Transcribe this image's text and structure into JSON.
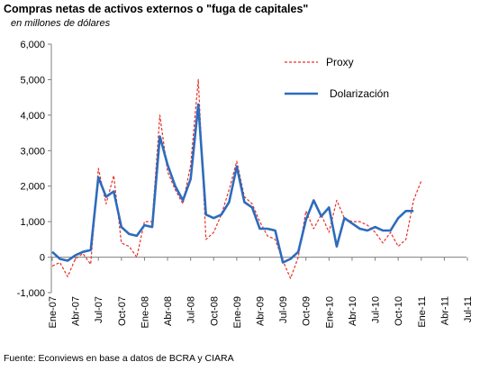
{
  "chart_data": {
    "type": "line",
    "title": "Compras netas de activos externos o \"fuga de capitales\"",
    "subtitle": "en millones de dólares",
    "source": "Fuente: Econviews en base a datos de BCRA y CIARA",
    "ylim": [
      -1000,
      6000
    ],
    "yticks": [
      -1000,
      0,
      1000,
      2000,
      3000,
      4000,
      5000,
      6000
    ],
    "ytick_labels": [
      "-1,000",
      "0",
      "1,000",
      "2,000",
      "3,000",
      "4,000",
      "5,000",
      "6,000"
    ],
    "xticks": [
      "Ene-07",
      "Abr-07",
      "Jul-07",
      "Oct-07",
      "Ene-08",
      "Abr-08",
      "Jul-08",
      "Oct-08",
      "Ene-09",
      "Abr-09",
      "Jul-09",
      "Oct-09",
      "Ene-10",
      "Abr-10",
      "Jul-10",
      "Oct-10",
      "Ene-11",
      "Abr-11",
      "Jul-11"
    ],
    "x": [
      "Ene-07",
      "Feb-07",
      "Mar-07",
      "Abr-07",
      "May-07",
      "Jun-07",
      "Jul-07",
      "Ago-07",
      "Sep-07",
      "Oct-07",
      "Nov-07",
      "Dic-07",
      "Ene-08",
      "Feb-08",
      "Mar-08",
      "Abr-08",
      "May-08",
      "Jun-08",
      "Jul-08",
      "Ago-08",
      "Sep-08",
      "Oct-08",
      "Nov-08",
      "Dic-08",
      "Ene-09",
      "Feb-09",
      "Mar-09",
      "Abr-09",
      "May-09",
      "Jun-09",
      "Jul-09",
      "Ago-09",
      "Sep-09",
      "Oct-09",
      "Nov-09",
      "Dic-09",
      "Ene-10",
      "Feb-10",
      "Mar-10",
      "Abr-10",
      "May-10",
      "Jun-10",
      "Jul-10",
      "Ago-10",
      "Sep-10",
      "Oct-10",
      "Nov-10",
      "Dic-10",
      "Ene-11",
      "Feb-11",
      "Mar-11",
      "Abr-11",
      "May-11"
    ],
    "grid": false,
    "legend_position": "top-right",
    "series": [
      {
        "name": "Proxy",
        "color": "#e8312a",
        "style": "dashed",
        "values": [
          -250,
          -150,
          -550,
          -50,
          100,
          -200,
          2500,
          1500,
          2300,
          400,
          300,
          0,
          1000,
          1000,
          4000,
          2400,
          1900,
          1500,
          2600,
          5000,
          500,
          700,
          1200,
          1900,
          2700,
          1700,
          1500,
          1000,
          600,
          500,
          -100,
          -600,
          0,
          1300,
          800,
          1200,
          700,
          1600,
          1100,
          1000,
          1000,
          900,
          700,
          400,
          700,
          300,
          500,
          1600,
          2150,
          null,
          null,
          null,
          null
        ]
      },
      {
        "name": "Dolarización",
        "color": "#2e6bbd",
        "style": "solid",
        "values": [
          150,
          -50,
          -100,
          50,
          150,
          200,
          2250,
          1700,
          1850,
          850,
          650,
          600,
          900,
          850,
          3400,
          2600,
          2000,
          1600,
          2200,
          4300,
          1200,
          1100,
          1200,
          1550,
          2550,
          1550,
          1400,
          800,
          800,
          750,
          -150,
          -50,
          150,
          1050,
          1600,
          1150,
          1400,
          300,
          1100,
          950,
          800,
          750,
          850,
          750,
          750,
          1100,
          1300,
          1300,
          null,
          null,
          null,
          null,
          null
        ]
      }
    ]
  }
}
